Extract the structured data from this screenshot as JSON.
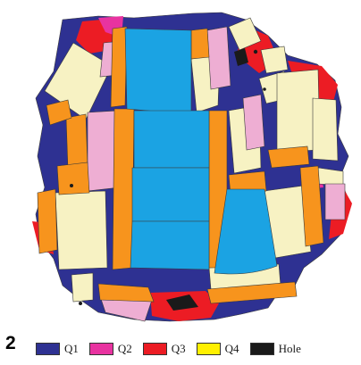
{
  "panel_label": "2",
  "colors": {
    "outline": "#3a3a3a",
    "q1": "#2e3192",
    "q2": "#e833a0",
    "q3": "#ec1c24",
    "q4": "#fff000",
    "hole": "#1a1a1a",
    "blue_piece": "#1ba3e3",
    "orange_piece": "#f7941d",
    "cream_piece": "#f7f2c3",
    "pink_piece": "#eeaed3"
  },
  "legend": {
    "items": [
      {
        "label": "Q1",
        "color": "#2e3192"
      },
      {
        "label": "Q2",
        "color": "#e833a0"
      },
      {
        "label": "Q3",
        "color": "#ec1c24"
      },
      {
        "label": "Q4",
        "color": "#fff000"
      },
      {
        "label": "Hole",
        "color": "#1a1a1a"
      }
    ]
  }
}
